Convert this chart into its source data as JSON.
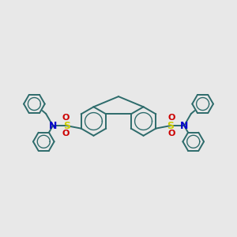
{
  "background_color": "#e8e8e8",
  "ring_color": "#2d6b6b",
  "ring_linewidth": 1.4,
  "S_color": "#cccc00",
  "N_color": "#0000cc",
  "O_color": "#cc0000",
  "font_size_atom": 8,
  "figsize": [
    3.0,
    3.0
  ],
  "dpi": 100,
  "xlim": [
    -4.2,
    4.2
  ],
  "ylim": [
    -2.8,
    2.8
  ]
}
